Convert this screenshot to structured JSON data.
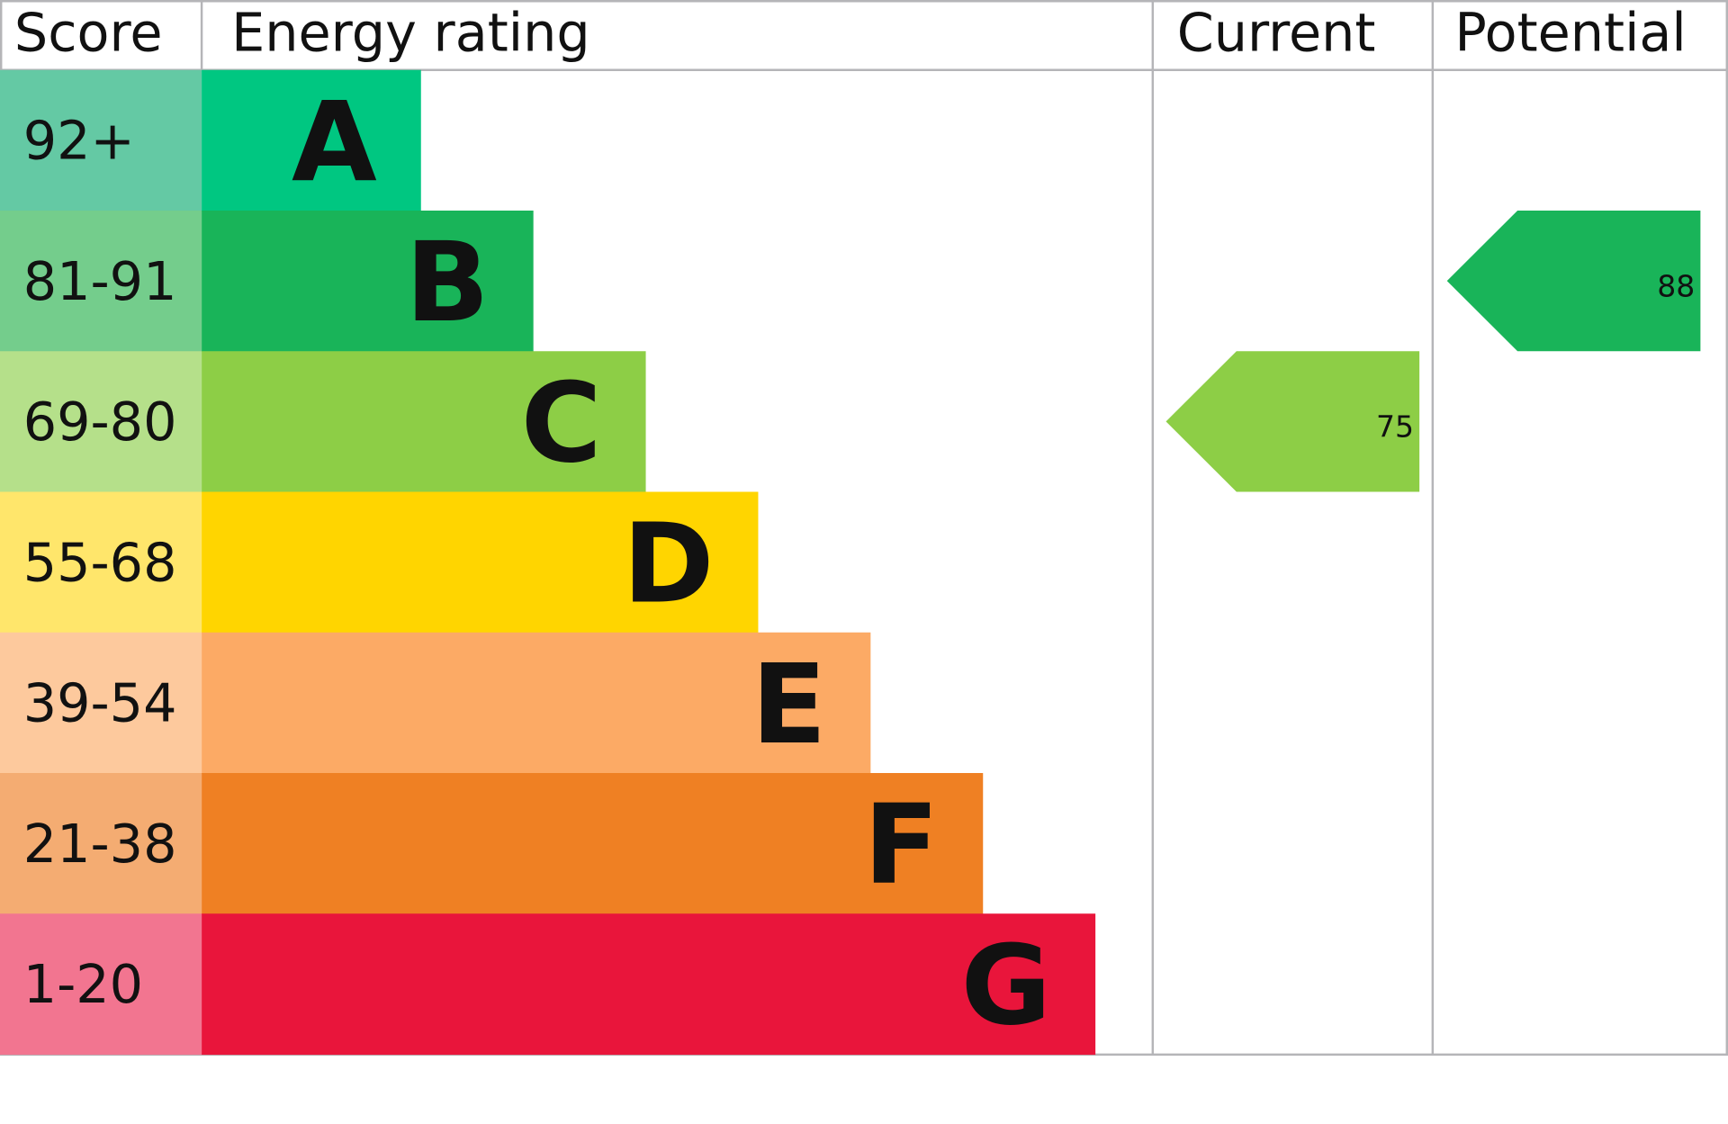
{
  "chart_data": {
    "type": "bar",
    "headers": {
      "score": "Score",
      "rating": "Energy rating",
      "current": "Current",
      "potential": "Potential"
    },
    "bands": [
      {
        "letter": "A",
        "range": "92+",
        "color": "#00c781",
        "score_color": "#64c9a4"
      },
      {
        "letter": "B",
        "range": "81-91",
        "color": "#19b459",
        "score_color": "#74cd8c"
      },
      {
        "letter": "C",
        "range": "69-80",
        "color": "#8dce46",
        "score_color": "#b5e08a"
      },
      {
        "letter": "D",
        "range": "55-68",
        "color": "#ffd500",
        "score_color": "#ffe66b"
      },
      {
        "letter": "E",
        "range": "39-54",
        "color": "#fcaa65",
        "score_color": "#fdc99d"
      },
      {
        "letter": "F",
        "range": "21-38",
        "color": "#ef8023",
        "score_color": "#f4ac72"
      },
      {
        "letter": "G",
        "range": "1-20",
        "color": "#e9153b",
        "score_color": "#f27590"
      }
    ],
    "current": {
      "value": "75",
      "band": "C"
    },
    "potential": {
      "value": "88",
      "band": "B"
    },
    "text_color": "#111111",
    "grid_color": "#b5b5b8"
  }
}
